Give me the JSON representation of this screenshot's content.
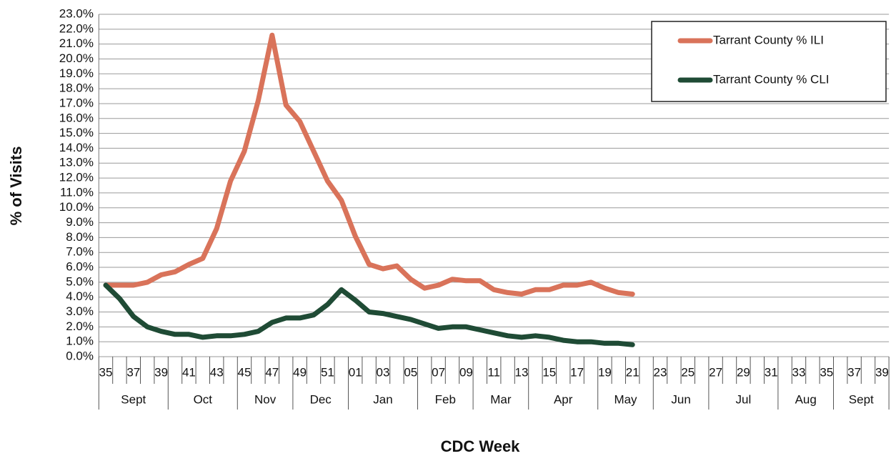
{
  "chart_data": {
    "type": "line",
    "x_label": "CDC Week",
    "y_label": "% of Visits",
    "categories": [
      "35",
      null,
      "37",
      null,
      "39",
      null,
      "41",
      null,
      "43",
      null,
      "45",
      null,
      "47",
      null,
      "49",
      null,
      "51",
      null,
      "01",
      null,
      "03",
      null,
      "05",
      null,
      "07",
      null,
      "09",
      null,
      "11",
      null,
      "13",
      null,
      "15",
      null,
      "17",
      null,
      "19",
      null,
      "21",
      null,
      "23",
      null,
      "25",
      null,
      "27",
      null,
      "29",
      null,
      "31",
      null,
      "33",
      null,
      "35",
      null,
      "37",
      null,
      "39"
    ],
    "month_groups": [
      {
        "label": "Sept",
        "first": 0,
        "last": 4
      },
      {
        "label": "Oct",
        "first": 5,
        "last": 9
      },
      {
        "label": "Nov",
        "first": 10,
        "last": 13
      },
      {
        "label": "Dec",
        "first": 14,
        "last": 17
      },
      {
        "label": "Jan",
        "first": 18,
        "last": 22
      },
      {
        "label": "Feb",
        "first": 23,
        "last": 26
      },
      {
        "label": "Mar",
        "first": 27,
        "last": 30
      },
      {
        "label": "Apr",
        "first": 31,
        "last": 35
      },
      {
        "label": "May",
        "first": 36,
        "last": 39
      },
      {
        "label": "Jun",
        "first": 40,
        "last": 43
      },
      {
        "label": "Jul",
        "first": 44,
        "last": 48
      },
      {
        "label": "Aug",
        "first": 49,
        "last": 52
      },
      {
        "label": "Sept",
        "first": 53,
        "last": 56
      }
    ],
    "series": [
      {
        "name": "Tarrant County % ILI",
        "color": "#d9735a",
        "values": [
          4.8,
          4.8,
          4.8,
          5.0,
          5.5,
          5.7,
          6.2,
          6.6,
          8.6,
          11.8,
          13.8,
          17.2,
          21.6,
          16.9,
          15.8,
          13.8,
          11.8,
          10.5,
          8.1,
          6.2,
          5.9,
          6.1,
          5.2,
          4.6,
          4.8,
          5.2,
          5.1,
          5.1,
          4.5,
          4.3,
          4.2,
          4.5,
          4.5,
          4.8,
          4.8,
          5.0,
          4.6,
          4.3,
          4.2,
          null,
          null,
          null,
          null,
          null,
          null,
          null,
          null,
          null,
          null,
          null,
          null,
          null,
          null,
          null,
          null,
          null,
          null
        ]
      },
      {
        "name": "Tarrant County % CLI",
        "color": "#1f4b35",
        "values": [
          4.8,
          3.9,
          2.7,
          2.0,
          1.7,
          1.5,
          1.5,
          1.3,
          1.4,
          1.4,
          1.5,
          1.7,
          2.3,
          2.6,
          2.6,
          2.8,
          3.5,
          4.5,
          3.8,
          3.0,
          2.9,
          2.7,
          2.5,
          2.2,
          1.9,
          2.0,
          2.0,
          1.8,
          1.6,
          1.4,
          1.3,
          1.4,
          1.3,
          1.1,
          1.0,
          1.0,
          0.9,
          0.9,
          0.8,
          null,
          null,
          null,
          null,
          null,
          null,
          null,
          null,
          null,
          null,
          null,
          null,
          null,
          null,
          null,
          null,
          null,
          null
        ]
      }
    ],
    "ylim": [
      0,
      23
    ],
    "yticks": [
      {
        "value": 0,
        "label": "0.0%"
      },
      {
        "value": 1,
        "label": "1.0%"
      },
      {
        "value": 2,
        "label": "2.0%"
      },
      {
        "value": 3,
        "label": "3.0%"
      },
      {
        "value": 4,
        "label": "4.0%"
      },
      {
        "value": 5,
        "label": "5.0%"
      },
      {
        "value": 6,
        "label": "6.0%"
      },
      {
        "value": 7,
        "label": "7.0%"
      },
      {
        "value": 8,
        "label": "8.0%"
      },
      {
        "value": 9,
        "label": "9.0%"
      },
      {
        "value": 10,
        "label": "10.0%"
      },
      {
        "value": 11,
        "label": "11.0%"
      },
      {
        "value": 12,
        "label": "12.0%"
      },
      {
        "value": 13,
        "label": "13.0%"
      },
      {
        "value": 14,
        "label": "14.0%"
      },
      {
        "value": 15,
        "label": "15.0%"
      },
      {
        "value": 16,
        "label": "16.0%"
      },
      {
        "value": 17,
        "label": "17.0%"
      },
      {
        "value": 18,
        "label": "18.0%"
      },
      {
        "value": 19,
        "label": "19.0%"
      },
      {
        "value": 20,
        "label": "20.0%"
      },
      {
        "value": 21,
        "label": "21.0%"
      },
      {
        "value": 22,
        "label": "22.0%"
      },
      {
        "value": 23,
        "label": "23.0%"
      }
    ],
    "grid": true,
    "legend": "upper right"
  }
}
